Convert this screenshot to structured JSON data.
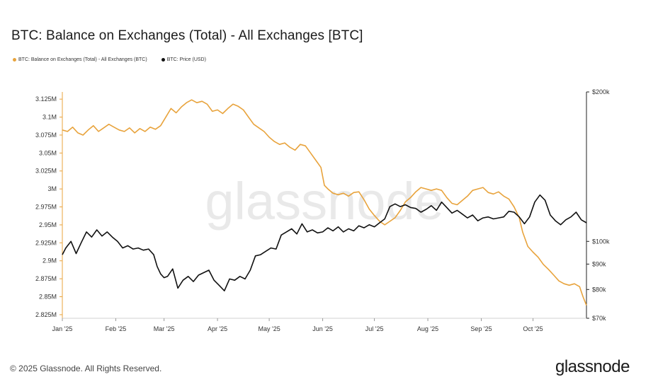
{
  "colors": {
    "balance": "#e8a33c",
    "price": "#111111",
    "axis": "#222222"
  },
  "chart_data": {
    "type": "line",
    "title": "BTC: Balance on Exchanges (Total) - All Exchanges [BTC]",
    "legend": [
      "BTC: Balance on Exchanges (Total) - All Exchanges (BTC)",
      "BTC: Price (USD)"
    ],
    "x_ticks": [
      "Jan '25",
      "Feb '25",
      "Mar '25",
      "Apr '25",
      "May '25",
      "Jun '25",
      "Jul '25",
      "Aug '25",
      "Sep '25",
      "Oct '25"
    ],
    "x_tick_day": [
      0,
      31,
      59,
      90,
      120,
      151,
      181,
      212,
      243,
      273
    ],
    "x_range_days": [
      0,
      304
    ],
    "y_left_ticks": [
      "3.125M",
      "3.1M",
      "3.075M",
      "3.05M",
      "3.025M",
      "3M",
      "2.975M",
      "2.95M",
      "2.925M",
      "2.9M",
      "2.875M",
      "2.85M",
      "2.825M"
    ],
    "y_left_range": [
      2820000,
      3135000
    ],
    "y_right_ticks": [
      "$200k",
      "$100k",
      "$90k",
      "$80k",
      "$70k"
    ],
    "y_right_tick_values": [
      200000,
      100000,
      90000,
      80000,
      70000
    ],
    "y_right_scale": "log",
    "y_right_range": [
      70000,
      200000
    ],
    "series": [
      {
        "name": "BTC: Balance on Exchanges (Total) - All Exchanges (BTC)",
        "axis": "left",
        "points": [
          [
            0,
            3082000
          ],
          [
            3,
            3080000
          ],
          [
            6,
            3086000
          ],
          [
            9,
            3078000
          ],
          [
            12,
            3075000
          ],
          [
            15,
            3082000
          ],
          [
            18,
            3088000
          ],
          [
            21,
            3080000
          ],
          [
            24,
            3085000
          ],
          [
            27,
            3090000
          ],
          [
            30,
            3086000
          ],
          [
            33,
            3082000
          ],
          [
            36,
            3080000
          ],
          [
            39,
            3085000
          ],
          [
            42,
            3078000
          ],
          [
            45,
            3084000
          ],
          [
            48,
            3080000
          ],
          [
            51,
            3086000
          ],
          [
            54,
            3083000
          ],
          [
            57,
            3088000
          ],
          [
            60,
            3100000
          ],
          [
            63,
            3112000
          ],
          [
            66,
            3106000
          ],
          [
            69,
            3114000
          ],
          [
            72,
            3120000
          ],
          [
            75,
            3124000
          ],
          [
            78,
            3120000
          ],
          [
            81,
            3122000
          ],
          [
            84,
            3118000
          ],
          [
            87,
            3108000
          ],
          [
            90,
            3110000
          ],
          [
            93,
            3105000
          ],
          [
            96,
            3112000
          ],
          [
            99,
            3118000
          ],
          [
            102,
            3115000
          ],
          [
            105,
            3110000
          ],
          [
            108,
            3100000
          ],
          [
            111,
            3090000
          ],
          [
            114,
            3085000
          ],
          [
            117,
            3080000
          ],
          [
            120,
            3072000
          ],
          [
            123,
            3066000
          ],
          [
            126,
            3062000
          ],
          [
            129,
            3064000
          ],
          [
            132,
            3058000
          ],
          [
            135,
            3054000
          ],
          [
            138,
            3062000
          ],
          [
            141,
            3060000
          ],
          [
            144,
            3050000
          ],
          [
            147,
            3040000
          ],
          [
            150,
            3030000
          ],
          [
            152,
            3005000
          ],
          [
            154,
            3000000
          ],
          [
            157,
            2994000
          ],
          [
            160,
            2992000
          ],
          [
            163,
            2994000
          ],
          [
            166,
            2990000
          ],
          [
            169,
            2995000
          ],
          [
            172,
            2996000
          ],
          [
            175,
            2985000
          ],
          [
            178,
            2972000
          ],
          [
            181,
            2963000
          ],
          [
            184,
            2955000
          ],
          [
            187,
            2950000
          ],
          [
            190,
            2955000
          ],
          [
            193,
            2960000
          ],
          [
            196,
            2970000
          ],
          [
            199,
            2982000
          ],
          [
            202,
            2988000
          ],
          [
            205,
            2996000
          ],
          [
            208,
            3002000
          ],
          [
            211,
            3000000
          ],
          [
            214,
            2998000
          ],
          [
            217,
            3000000
          ],
          [
            220,
            2998000
          ],
          [
            223,
            2988000
          ],
          [
            226,
            2980000
          ],
          [
            229,
            2978000
          ],
          [
            232,
            2984000
          ],
          [
            235,
            2990000
          ],
          [
            238,
            2998000
          ],
          [
            241,
            3000000
          ],
          [
            244,
            3002000
          ],
          [
            247,
            2995000
          ],
          [
            250,
            2993000
          ],
          [
            253,
            2996000
          ],
          [
            256,
            2990000
          ],
          [
            259,
            2986000
          ],
          [
            262,
            2975000
          ],
          [
            265,
            2960000
          ],
          [
            267,
            2940000
          ],
          [
            270,
            2920000
          ],
          [
            273,
            2912000
          ],
          [
            276,
            2905000
          ],
          [
            279,
            2895000
          ],
          [
            282,
            2888000
          ],
          [
            285,
            2880000
          ],
          [
            288,
            2872000
          ],
          [
            291,
            2868000
          ],
          [
            294,
            2866000
          ],
          [
            297,
            2868000
          ],
          [
            300,
            2864000
          ],
          [
            302,
            2850000
          ],
          [
            304,
            2838000
          ]
        ]
      },
      {
        "name": "BTC: Price (USD)",
        "axis": "right",
        "points": [
          [
            0,
            94000
          ],
          [
            2,
            97000
          ],
          [
            5,
            100000
          ],
          [
            8,
            94500
          ],
          [
            11,
            99500
          ],
          [
            14,
            104500
          ],
          [
            17,
            102000
          ],
          [
            20,
            105500
          ],
          [
            23,
            102500
          ],
          [
            26,
            104500
          ],
          [
            29,
            102000
          ],
          [
            32,
            100000
          ],
          [
            35,
            97000
          ],
          [
            38,
            98000
          ],
          [
            41,
            96500
          ],
          [
            44,
            97000
          ],
          [
            47,
            96000
          ],
          [
            50,
            96500
          ],
          [
            53,
            94000
          ],
          [
            55,
            89000
          ],
          [
            57,
            86000
          ],
          [
            59,
            84500
          ],
          [
            61,
            85000
          ],
          [
            64,
            88000
          ],
          [
            67,
            80500
          ],
          [
            70,
            83500
          ],
          [
            73,
            85000
          ],
          [
            76,
            83000
          ],
          [
            79,
            85500
          ],
          [
            82,
            86500
          ],
          [
            85,
            87500
          ],
          [
            88,
            83500
          ],
          [
            91,
            81500
          ],
          [
            94,
            79500
          ],
          [
            97,
            84000
          ],
          [
            100,
            83500
          ],
          [
            103,
            85000
          ],
          [
            106,
            84000
          ],
          [
            109,
            87500
          ],
          [
            112,
            93500
          ],
          [
            115,
            94000
          ],
          [
            118,
            95500
          ],
          [
            121,
            97000
          ],
          [
            124,
            96500
          ],
          [
            127,
            103000
          ],
          [
            130,
            104500
          ],
          [
            133,
            106000
          ],
          [
            136,
            103500
          ],
          [
            139,
            108500
          ],
          [
            142,
            104500
          ],
          [
            145,
            105500
          ],
          [
            148,
            104000
          ],
          [
            151,
            104500
          ],
          [
            154,
            106500
          ],
          [
            157,
            105000
          ],
          [
            160,
            107000
          ],
          [
            163,
            104500
          ],
          [
            166,
            106000
          ],
          [
            169,
            105000
          ],
          [
            172,
            107500
          ],
          [
            175,
            106500
          ],
          [
            178,
            108000
          ],
          [
            181,
            107000
          ],
          [
            184,
            109000
          ],
          [
            187,
            111000
          ],
          [
            190,
            117500
          ],
          [
            193,
            119000
          ],
          [
            196,
            117500
          ],
          [
            199,
            118500
          ],
          [
            202,
            117000
          ],
          [
            205,
            116500
          ],
          [
            208,
            114500
          ],
          [
            211,
            116000
          ],
          [
            214,
            118000
          ],
          [
            217,
            115500
          ],
          [
            220,
            120000
          ],
          [
            223,
            117000
          ],
          [
            226,
            114000
          ],
          [
            229,
            115500
          ],
          [
            232,
            113500
          ],
          [
            235,
            111500
          ],
          [
            238,
            113000
          ],
          [
            241,
            110000
          ],
          [
            244,
            111500
          ],
          [
            247,
            112000
          ],
          [
            250,
            111000
          ],
          [
            253,
            111500
          ],
          [
            256,
            112000
          ],
          [
            259,
            115000
          ],
          [
            262,
            114500
          ],
          [
            265,
            112000
          ],
          [
            268,
            108500
          ],
          [
            271,
            112000
          ],
          [
            274,
            120000
          ],
          [
            277,
            124000
          ],
          [
            280,
            121000
          ],
          [
            283,
            113000
          ],
          [
            286,
            110000
          ],
          [
            289,
            108000
          ],
          [
            292,
            110500
          ],
          [
            295,
            112000
          ],
          [
            298,
            114500
          ],
          [
            301,
            110500
          ],
          [
            304,
            109000
          ]
        ]
      }
    ]
  },
  "watermark": "glassnode",
  "footer": {
    "copyright": "© 2025 Glassnode. All Rights Reserved.",
    "logo": "glassnode"
  }
}
